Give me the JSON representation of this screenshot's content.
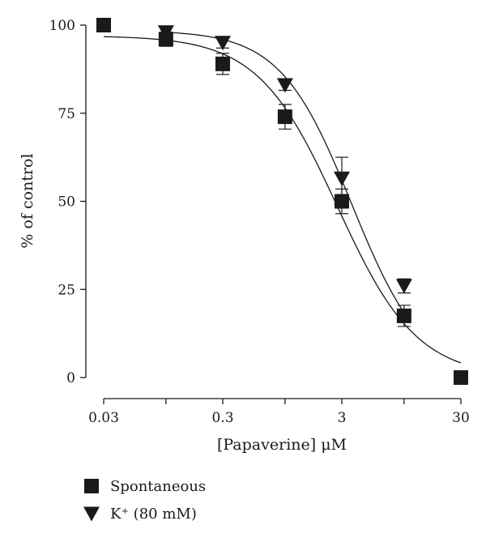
{
  "chart_data": {
    "type": "scatter",
    "xlabel": "[Papaverine] μM",
    "ylabel": "% of control",
    "x_scale": "log",
    "xlim": [
      0.03,
      30
    ],
    "ylim": [
      0,
      100
    ],
    "x_ticks": [
      0.03,
      0.1,
      0.3,
      1,
      3,
      10,
      30
    ],
    "x_tick_labels": [
      "0.03",
      "",
      "0.3",
      "",
      "3",
      "",
      "30"
    ],
    "y_ticks": [
      0,
      25,
      50,
      75,
      100
    ],
    "y_tick_labels": [
      "0",
      "25",
      "50",
      "75",
      "100"
    ],
    "grid": false,
    "legend_position": "bottom-left",
    "series": [
      {
        "name": "Spontaneous",
        "marker": "square",
        "x": [
          0.03,
          0.1,
          0.3,
          1,
          3,
          10,
          30
        ],
        "y": [
          100,
          96,
          89,
          74,
          50,
          17.5,
          0
        ],
        "error": [
          0,
          2,
          3,
          3.5,
          3.5,
          3,
          0
        ],
        "fit": {
          "top": 97,
          "bottom": 0,
          "log_ec50": 0.44,
          "hill": 1.3
        }
      },
      {
        "name": "K⁺ (80 mM)",
        "marker": "triangle-down",
        "x": [
          0.1,
          0.3,
          1,
          3,
          10
        ],
        "y": [
          98,
          95,
          83,
          56.5,
          26
        ],
        "error": [
          1.5,
          1.5,
          1.5,
          6,
          2
        ],
        "fit": {
          "top": 98.5,
          "bottom": 0,
          "log_ec50": 0.56,
          "hill": 1.45
        }
      }
    ]
  }
}
